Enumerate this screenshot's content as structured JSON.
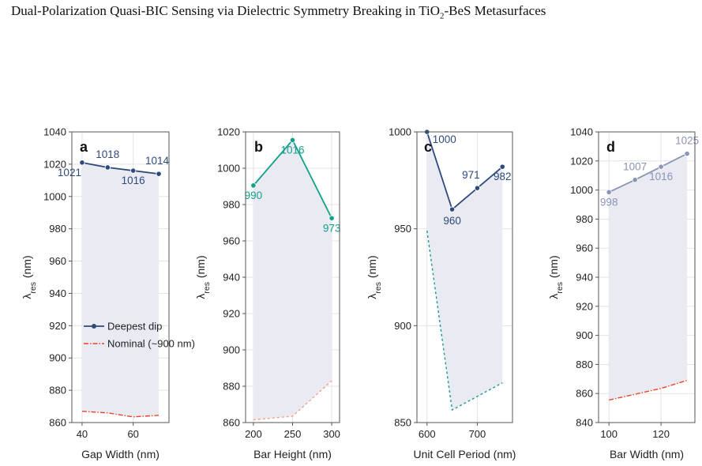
{
  "title": {
    "prefix": "Dual-Polarization Quasi-BIC Sensing via Dielectric Symmetry Breaking in TiO",
    "sub": "2",
    "suffix": "-BeS Metasurfaces"
  },
  "colors": {
    "navy": "#2e4a7d",
    "teal": "#12a08a",
    "slate": "#8a94b4",
    "nominal_red": "#e8442a",
    "nominal_teal": "#1b9a8c",
    "nominal_salmon": "#f2a08c",
    "fill": "#eaebf2"
  },
  "chart_data": [
    {
      "panel": "a",
      "type": "line",
      "xlabel": "Gap Width (nm)",
      "ylabel": "λres (nm)",
      "xlim": [
        36,
        74
      ],
      "ylim": [
        860,
        1040
      ],
      "xticks": [
        40,
        60
      ],
      "yticks": [
        860,
        880,
        900,
        920,
        940,
        960,
        980,
        1000,
        1020,
        1040
      ],
      "grid": true,
      "series": [
        {
          "name": "Deepest dip",
          "x": [
            40,
            50,
            60,
            70
          ],
          "y": [
            1021,
            1018,
            1016,
            1014
          ],
          "color": "#2e4a7d",
          "style": "solid",
          "markers": true,
          "labels": [
            "1021",
            "1018",
            "1016",
            "1014"
          ]
        },
        {
          "name": "Nominal (~900 nm)",
          "x": [
            40,
            50,
            60,
            70
          ],
          "y": [
            867,
            866,
            863.5,
            864.5
          ],
          "color": "#e8442a",
          "style": "dashdot",
          "markers": false
        }
      ],
      "legend": "center-left"
    },
    {
      "panel": "b",
      "type": "line",
      "xlabel": "Bar Height (nm)",
      "ylabel": "λres (nm)",
      "xlim": [
        190,
        310
      ],
      "ylim": [
        860,
        1020
      ],
      "xticks": [
        200,
        250,
        300
      ],
      "yticks": [
        860,
        880,
        900,
        920,
        940,
        960,
        980,
        1000,
        1020
      ],
      "grid": true,
      "series": [
        {
          "name": "Deepest dip",
          "x": [
            200,
            250,
            300
          ],
          "y": [
            990.5,
            1015.5,
            972.5
          ],
          "color": "#12a08a",
          "style": "solid",
          "markers": true,
          "labels": [
            "990",
            "1016",
            "973"
          ]
        },
        {
          "name": "Nominal (~900 nm)",
          "x": [
            200,
            250,
            300
          ],
          "y": [
            861.5,
            863.5,
            883
          ],
          "color": "#f2a08c",
          "style": "dashed",
          "markers": false
        }
      ]
    },
    {
      "panel": "c",
      "type": "line",
      "xlabel": "Unit Cell Period (nm)",
      "ylabel": "λres (nm)",
      "xlim": [
        580,
        770
      ],
      "ylim": [
        850,
        1000
      ],
      "xticks": [
        600,
        700
      ],
      "yticks": [
        850,
        900,
        950,
        1000
      ],
      "grid": true,
      "series": [
        {
          "name": "Deepest dip",
          "x": [
            600,
            650,
            700,
            750
          ],
          "y": [
            1000,
            960,
            971,
            982
          ],
          "color": "#2e4a7d",
          "style": "solid",
          "markers": true,
          "labels": [
            "1000",
            "960",
            "971",
            "982"
          ]
        },
        {
          "name": "Nominal (~900 nm)",
          "x": [
            600,
            650,
            700,
            750
          ],
          "y": [
            949,
            856.5,
            863.5,
            870.5
          ],
          "color": "#1b9a8c",
          "style": "dashed",
          "markers": false
        }
      ]
    },
    {
      "panel": "d",
      "type": "line",
      "xlabel": "Bar Width (nm)",
      "ylabel": "λres (nm)",
      "xlim": [
        96,
        133
      ],
      "ylim": [
        840,
        1040
      ],
      "xticks": [
        100,
        120
      ],
      "yticks": [
        840,
        860,
        880,
        900,
        920,
        940,
        960,
        980,
        1000,
        1020,
        1040
      ],
      "grid": true,
      "series": [
        {
          "name": "Deepest dip",
          "x": [
            100,
            110,
            120,
            130
          ],
          "y": [
            998.5,
            1007,
            1016,
            1025
          ],
          "color": "#8a94b4",
          "style": "solid",
          "markers": true,
          "labels": [
            "998",
            "1007",
            "1016",
            "1025"
          ]
        },
        {
          "name": "Nominal (~900 nm)",
          "x": [
            100,
            110,
            120,
            130
          ],
          "y": [
            855.5,
            859.5,
            863.5,
            869
          ],
          "color": "#e8442a",
          "style": "dashdot",
          "markers": false
        }
      ]
    }
  ]
}
